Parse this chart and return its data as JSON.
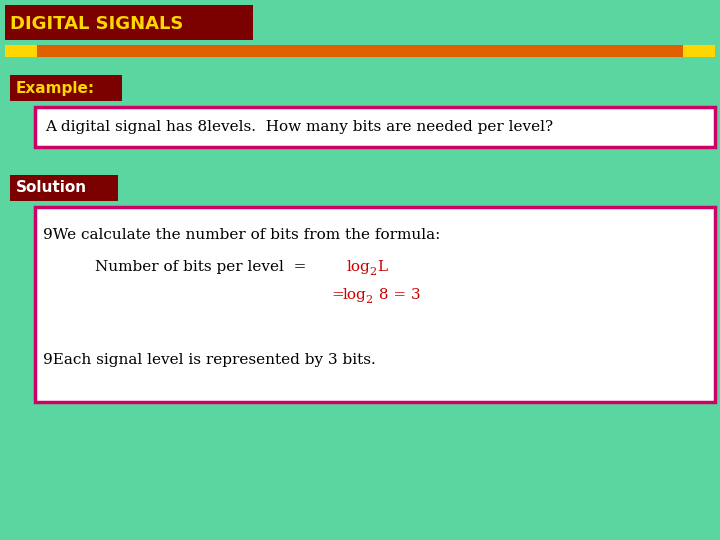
{
  "title": "DIGITAL SIGNALS",
  "title_bg": "#7B0000",
  "title_color": "#FFD700",
  "bg_color": "#5CD6A0",
  "stripe_color_orange": "#E06000",
  "stripe_color_gold": "#FFD700",
  "example_label": "Example:",
  "example_bg": "#7B0000",
  "example_color": "#FFD700",
  "question_text": "A digital signal has 8levels.  How many bits are needed per level?",
  "question_border": "#CC0066",
  "question_bg": "#FFFFFF",
  "solution_label": "Solution",
  "solution_bg": "#7B0000",
  "solution_color": "#FFFFFF",
  "solution_box_border": "#CC0066",
  "solution_box_bg": "#FFFFFF",
  "body_text_color": "#000000",
  "formula_color": "#CC0000",
  "bullet": "9"
}
